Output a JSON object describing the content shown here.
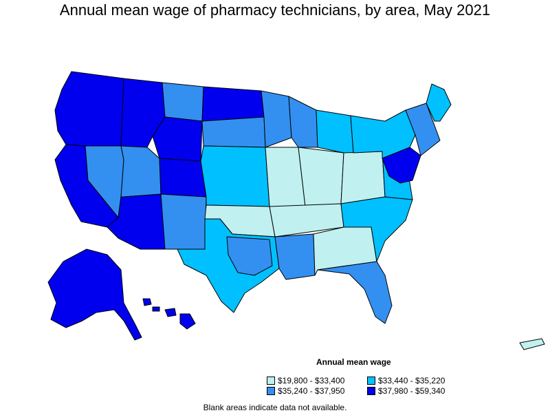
{
  "title": "Annual mean wage of pharmacy technicians, by area, May 2021",
  "legend": {
    "title": "Annual mean wage",
    "items": [
      {
        "label": "$19,800 - $33,400",
        "color": "#c0f0f0"
      },
      {
        "label": "$33,440 - $35,220",
        "color": "#00c0ff"
      },
      {
        "label": "$35,240 - $37,950",
        "color": "#3390f0"
      },
      {
        "label": "$37,980 - $59,340",
        "color": "#0000ee"
      }
    ]
  },
  "note": "Blank areas indicate data not available.",
  "colors": {
    "stroke": "#000000",
    "background": "#ffffff"
  },
  "regions": [
    {
      "id": "pacific-northwest",
      "tier": 3
    },
    {
      "id": "california",
      "tier": 3
    },
    {
      "id": "nevada",
      "tier": 2
    },
    {
      "id": "idaho-montana-west",
      "tier": 3
    },
    {
      "id": "montana-east",
      "tier": 2
    },
    {
      "id": "wyoming",
      "tier": 3
    },
    {
      "id": "utah",
      "tier": 2
    },
    {
      "id": "arizona",
      "tier": 3
    },
    {
      "id": "colorado",
      "tier": 3
    },
    {
      "id": "new-mexico",
      "tier": 2
    },
    {
      "id": "north-dakota",
      "tier": 3
    },
    {
      "id": "south-dakota",
      "tier": 2
    },
    {
      "id": "nebraska-kansas",
      "tier": 1
    },
    {
      "id": "oklahoma",
      "tier": 0
    },
    {
      "id": "texas",
      "tier": 1
    },
    {
      "id": "texas-central",
      "tier": 2
    },
    {
      "id": "minnesota",
      "tier": 2
    },
    {
      "id": "iowa-missouri",
      "tier": 0
    },
    {
      "id": "wisconsin",
      "tier": 2
    },
    {
      "id": "illinois-indiana",
      "tier": 0
    },
    {
      "id": "michigan",
      "tier": 1
    },
    {
      "id": "ohio-kentucky",
      "tier": 0
    },
    {
      "id": "tennessee-arkansas",
      "tier": 0
    },
    {
      "id": "louisiana-mississippi",
      "tier": 2
    },
    {
      "id": "alabama-georgia",
      "tier": 0
    },
    {
      "id": "florida",
      "tier": 2
    },
    {
      "id": "carolinas",
      "tier": 1
    },
    {
      "id": "virginia",
      "tier": 1
    },
    {
      "id": "mid-atlantic",
      "tier": 3
    },
    {
      "id": "pennsylvania-ny",
      "tier": 1
    },
    {
      "id": "new-england",
      "tier": 2
    },
    {
      "id": "maine",
      "tier": 1
    },
    {
      "id": "alaska",
      "tier": 3
    },
    {
      "id": "hawaii",
      "tier": 3
    },
    {
      "id": "puerto-rico",
      "tier": 0
    }
  ]
}
